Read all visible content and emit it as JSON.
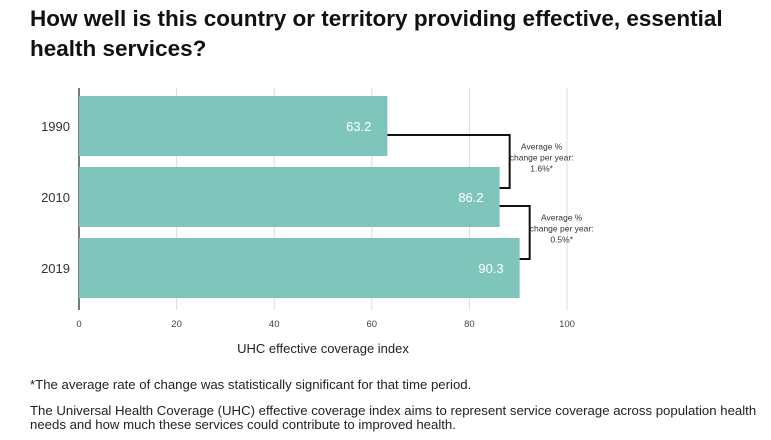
{
  "title": "How well is this country or territory providing effective, essential health services?",
  "chart_data": {
    "type": "bar",
    "orientation": "horizontal",
    "categories": [
      "1990",
      "2010",
      "2019"
    ],
    "values": [
      63.2,
      86.2,
      90.3
    ],
    "value_labels": [
      "63.2",
      "86.2",
      "90.3"
    ],
    "xlabel": "UHC effective coverage index",
    "xlim": [
      0,
      100
    ],
    "xticks": [
      "0",
      "20",
      "40",
      "60",
      "80",
      "100"
    ],
    "grid": true,
    "bar_color": "#7fc5bc",
    "annotations": [
      {
        "from": "1990",
        "to": "2010",
        "lines": [
          "Average %",
          "change per year:",
          "1.6%*"
        ]
      },
      {
        "from": "2010",
        "to": "2019",
        "lines": [
          "Average %",
          "change per year:",
          "0.5%*"
        ]
      }
    ]
  },
  "notes": {
    "significance": "*The average rate of change was statistically significant for that time period.",
    "definition": "The Universal Health Coverage (UHC) effective coverage index aims to represent service coverage across population health needs and how much these services could contribute to improved health."
  }
}
